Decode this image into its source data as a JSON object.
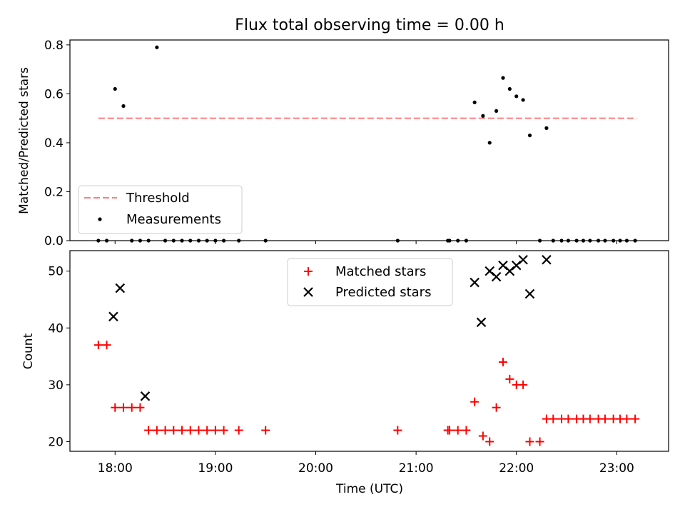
{
  "colors": {
    "threshold": "#ff7f7f",
    "measurement": "#000000",
    "matched": "#ff0000",
    "predicted": "#000000",
    "axis": "#000000"
  },
  "chart_data": [
    {
      "type": "scatter",
      "title": "Flux total observing time = 0.00 h",
      "xlabel": "",
      "ylabel": "Matched/Predicted stars",
      "xlim": [
        "17:33",
        "23:31"
      ],
      "ylim": [
        0,
        0.82
      ],
      "yticks": [
        0.0,
        0.2,
        0.4,
        0.6,
        0.8
      ],
      "ytick_labels": [
        "0.0",
        "0.2",
        "0.4",
        "0.6",
        "0.8"
      ],
      "grid": false,
      "legend_position": "lower-left",
      "threshold": {
        "name": "Threshold",
        "value": 0.5,
        "x_start": "17:50",
        "x_end": "23:12",
        "style": "dashed"
      },
      "series": [
        {
          "name": "Measurements",
          "x": [
            "17:50",
            "17:55",
            "18:00",
            "18:05",
            "18:10",
            "18:15",
            "18:20",
            "18:25",
            "18:30",
            "18:35",
            "18:40",
            "18:45",
            "18:50",
            "18:55",
            "19:00",
            "19:05",
            "19:14",
            "19:30",
            "20:49",
            "21:19",
            "21:20",
            "21:25",
            "21:30",
            "21:35",
            "21:40",
            "21:44",
            "21:48",
            "21:52",
            "21:56",
            "22:00",
            "22:04",
            "22:08",
            "22:14",
            "22:18",
            "22:22",
            "22:27",
            "22:31",
            "22:36",
            "22:40",
            "22:44",
            "22:49",
            "22:53",
            "22:58",
            "23:02",
            "23:06",
            "23:11"
          ],
          "y": [
            0,
            0,
            0.62,
            0.55,
            0,
            0,
            0,
            0.79,
            0,
            0,
            0,
            0,
            0,
            0,
            0,
            0,
            0,
            0,
            0,
            0,
            0,
            0,
            0,
            0.565,
            0.51,
            0.4,
            0.53,
            0.665,
            0.62,
            0.59,
            0.575,
            0.43,
            0,
            0.46,
            0,
            0,
            0,
            0,
            0,
            0,
            0,
            0,
            0,
            0,
            0,
            0
          ]
        }
      ]
    },
    {
      "type": "scatter",
      "title": "",
      "xlabel": "Time (UTC)",
      "ylabel": "Count",
      "xlim": [
        "17:33",
        "23:31"
      ],
      "ylim": [
        18.3,
        53.6
      ],
      "xticks": [
        "18:00",
        "19:00",
        "20:00",
        "21:00",
        "22:00",
        "23:00"
      ],
      "xtick_labels": [
        "18:00",
        "19:00",
        "20:00",
        "21:00",
        "22:00",
        "23:00"
      ],
      "yticks": [
        20,
        30,
        40,
        50
      ],
      "ytick_labels": [
        "20",
        "30",
        "40",
        "50"
      ],
      "grid": false,
      "legend_position": "upper-center",
      "series": [
        {
          "name": "Matched stars",
          "marker": "plus",
          "x": [
            "17:50",
            "17:55",
            "18:00",
            "18:05",
            "18:10",
            "18:15",
            "18:20",
            "18:25",
            "18:30",
            "18:35",
            "18:40",
            "18:45",
            "18:50",
            "18:55",
            "19:00",
            "19:05",
            "19:14",
            "19:30",
            "20:49",
            "21:19",
            "21:20",
            "21:25",
            "21:30",
            "21:35",
            "21:40",
            "21:44",
            "21:48",
            "21:52",
            "21:56",
            "22:00",
            "22:04",
            "22:08",
            "22:14",
            "22:18",
            "22:22",
            "22:27",
            "22:31",
            "22:36",
            "22:40",
            "22:44",
            "22:49",
            "22:53",
            "22:58",
            "23:02",
            "23:06",
            "23:11"
          ],
          "y": [
            37,
            37,
            26,
            26,
            26,
            26,
            22,
            22,
            22,
            22,
            22,
            22,
            22,
            22,
            22,
            22,
            22,
            22,
            22,
            22,
            22,
            22,
            22,
            27,
            21,
            20,
            26,
            34,
            31,
            30,
            30,
            20,
            20,
            24,
            24,
            24,
            24,
            24,
            24,
            24,
            24,
            24,
            24,
            24,
            24,
            24
          ]
        },
        {
          "name": "Predicted stars",
          "marker": "x",
          "x": [
            "17:59",
            "18:03",
            "18:18",
            "21:35",
            "21:39",
            "21:44",
            "21:48",
            "21:52",
            "21:56",
            "22:00",
            "22:04",
            "22:08",
            "22:18"
          ],
          "y": [
            42,
            47,
            28,
            48,
            41,
            50,
            49,
            51,
            50,
            51,
            52,
            46,
            52
          ]
        }
      ]
    }
  ]
}
